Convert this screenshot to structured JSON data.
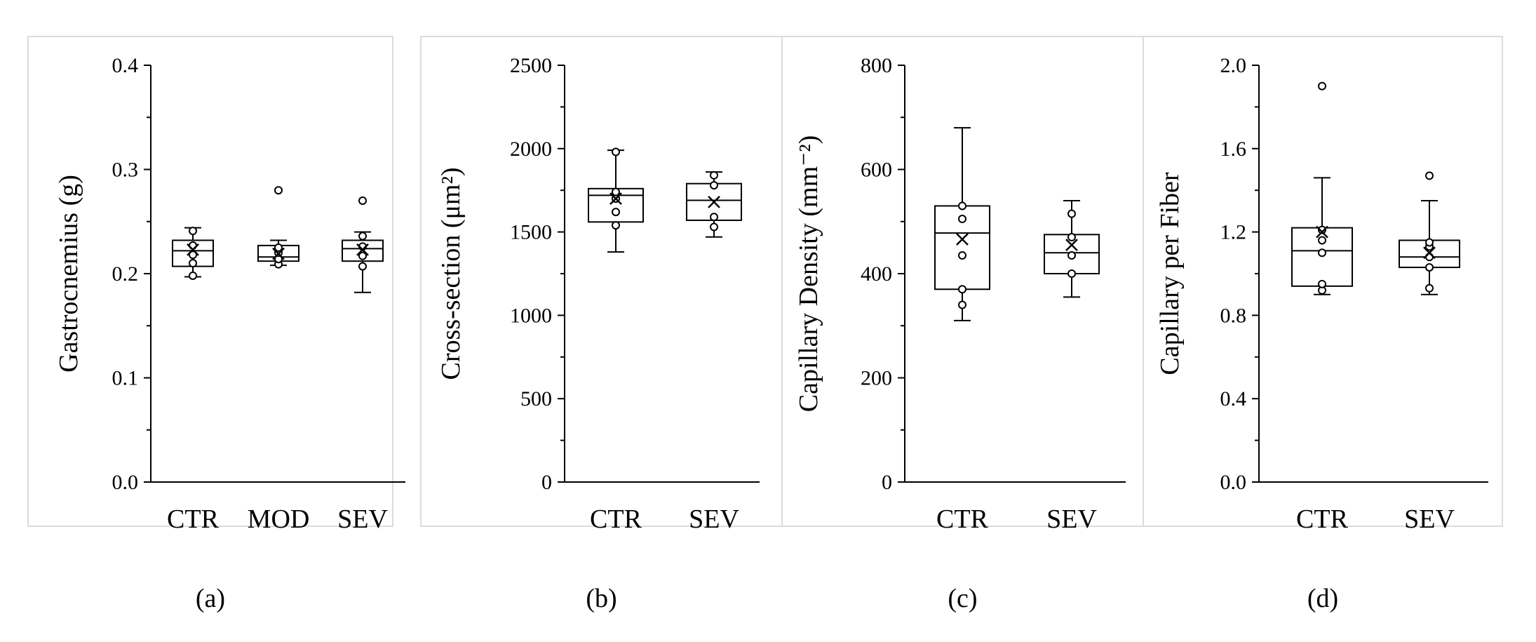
{
  "chart_data": [
    {
      "type": "box",
      "panel_label": "(a)",
      "ylabel": "Gastrocnemius (g)",
      "ylim": [
        0,
        0.4
      ],
      "yticks": [
        0.0,
        0.1,
        0.2,
        0.3,
        0.4
      ],
      "ytick_labels": [
        "0.0",
        "0.1",
        "0.2",
        "0.3",
        "0.4"
      ],
      "categories": [
        "CTR",
        "MOD",
        "SEV"
      ],
      "boxes": [
        {
          "category": "CTR",
          "whisker_low": 0.197,
          "q1": 0.207,
          "median": 0.222,
          "q3": 0.232,
          "whisker_high": 0.244,
          "mean": 0.223,
          "points": [
            0.198,
            0.21,
            0.218,
            0.227,
            0.241
          ],
          "outliers": []
        },
        {
          "category": "MOD",
          "whisker_low": 0.208,
          "q1": 0.212,
          "median": 0.216,
          "q3": 0.227,
          "whisker_high": 0.232,
          "mean": 0.219,
          "points": [
            0.209,
            0.214,
            0.22,
            0.225
          ],
          "outliers": [
            0.28
          ]
        },
        {
          "category": "SEV",
          "whisker_low": 0.182,
          "q1": 0.212,
          "median": 0.224,
          "q3": 0.232,
          "whisker_high": 0.24,
          "mean": 0.223,
          "points": [
            0.207,
            0.217,
            0.226,
            0.236
          ],
          "outliers": [
            0.27
          ]
        }
      ]
    },
    {
      "type": "box",
      "panel_label": "(b)",
      "ylabel": "Cross-section (μm²)",
      "ylim": [
        0,
        2500
      ],
      "yticks": [
        0,
        500,
        1000,
        1500,
        2000,
        2500
      ],
      "ytick_labels": [
        "0",
        "500",
        "1000",
        "1500",
        "2000",
        "2500"
      ],
      "categories": [
        "CTR",
        "SEV"
      ],
      "boxes": [
        {
          "category": "CTR",
          "whisker_low": 1380,
          "q1": 1560,
          "median": 1720,
          "q3": 1760,
          "whisker_high": 1990,
          "mean": 1700,
          "points": [
            1540,
            1620,
            1700,
            1740,
            1980
          ],
          "outliers": []
        },
        {
          "category": "SEV",
          "whisker_low": 1470,
          "q1": 1570,
          "median": 1690,
          "q3": 1790,
          "whisker_high": 1860,
          "mean": 1680,
          "points": [
            1530,
            1590,
            1780,
            1840
          ],
          "outliers": []
        }
      ]
    },
    {
      "type": "box",
      "panel_label": "(c)",
      "ylabel": "Capillary Density (mm⁻²)",
      "ylim": [
        0,
        800
      ],
      "yticks": [
        0,
        200,
        400,
        600,
        800
      ],
      "ytick_labels": [
        "0",
        "200",
        "400",
        "600",
        "800"
      ],
      "categories": [
        "CTR",
        "SEV"
      ],
      "boxes": [
        {
          "category": "CTR",
          "whisker_low": 310,
          "q1": 370,
          "median": 478,
          "q3": 530,
          "whisker_high": 680,
          "mean": 466,
          "points": [
            340,
            370,
            435,
            505,
            530
          ],
          "outliers": []
        },
        {
          "category": "SEV",
          "whisker_low": 355,
          "q1": 400,
          "median": 440,
          "q3": 475,
          "whisker_high": 540,
          "mean": 455,
          "points": [
            400,
            435,
            470,
            515
          ],
          "outliers": []
        }
      ]
    },
    {
      "type": "box",
      "panel_label": "(d)",
      "ylabel": "Capillary per Fiber",
      "ylim": [
        0,
        2.0
      ],
      "yticks": [
        0.0,
        0.4,
        0.8,
        1.2,
        1.6,
        2.0
      ],
      "ytick_labels": [
        "0.0",
        "0.4",
        "0.8",
        "1.2",
        "1.6",
        "2.0"
      ],
      "categories": [
        "CTR",
        "SEV"
      ],
      "boxes": [
        {
          "category": "CTR",
          "whisker_low": 0.9,
          "q1": 0.94,
          "median": 1.11,
          "q3": 1.22,
          "whisker_high": 1.46,
          "mean": 1.2,
          "points": [
            0.92,
            0.95,
            1.1,
            1.16,
            1.21
          ],
          "outliers": [
            1.9
          ]
        },
        {
          "category": "SEV",
          "whisker_low": 0.9,
          "q1": 1.03,
          "median": 1.08,
          "q3": 1.16,
          "whisker_high": 1.35,
          "mean": 1.1,
          "points": [
            0.93,
            1.03,
            1.08,
            1.13,
            1.15
          ],
          "outliers": [
            1.47
          ]
        }
      ]
    }
  ]
}
